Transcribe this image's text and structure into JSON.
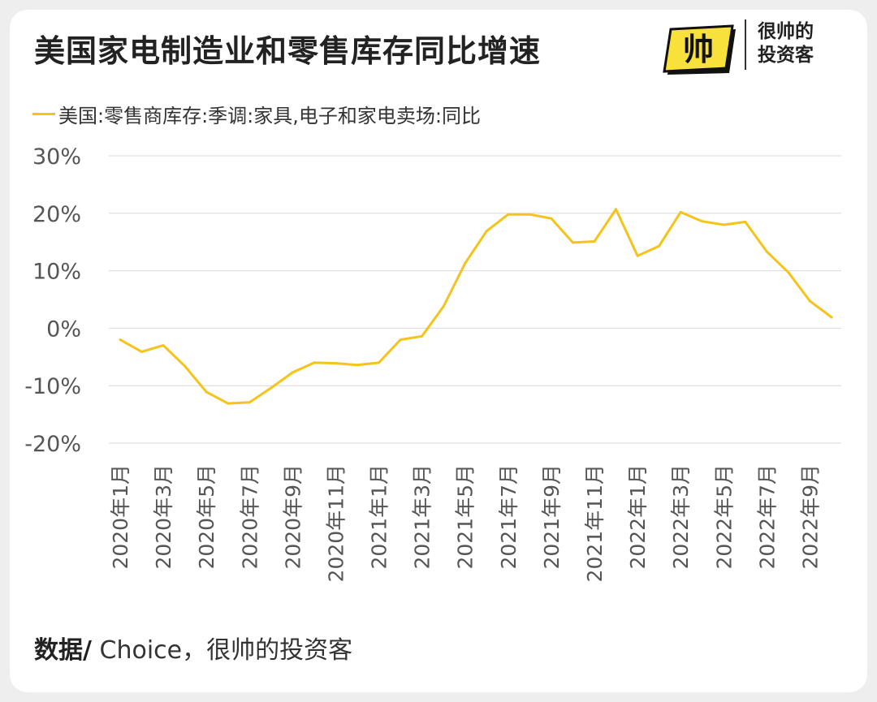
{
  "title": "美国家电制造业和零售库存同比增速",
  "brand": {
    "line1": "很帅的",
    "line2": "投资客",
    "logo_text": "帅"
  },
  "footer": {
    "label": "数据/",
    "text": " Choice，很帅的投资客"
  },
  "colors": {
    "line": "#f5c31a",
    "grid": "#d9d9d9",
    "axis_text": "#555555",
    "logo_yellow": "#f7e13a"
  },
  "chart_data": {
    "type": "line",
    "legend_position": "top-left",
    "grid": true,
    "ylim": [
      -20,
      30
    ],
    "yticks": [
      -20,
      -10,
      0,
      10,
      20,
      30
    ],
    "ytick_labels": [
      "-20%",
      "-10%",
      "0%",
      "10%",
      "20%",
      "30%"
    ],
    "x": [
      "2020年1月",
      "2020年2月",
      "2020年3月",
      "2020年4月",
      "2020年5月",
      "2020年6月",
      "2020年7月",
      "2020年8月",
      "2020年9月",
      "2020年10月",
      "2020年11月",
      "2020年12月",
      "2021年1月",
      "2021年2月",
      "2021年3月",
      "2021年4月",
      "2021年5月",
      "2021年6月",
      "2021年7月",
      "2021年8月",
      "2021年9月",
      "2021年10月",
      "2021年11月",
      "2021年12月",
      "2022年1月",
      "2022年2月",
      "2022年3月",
      "2022年4月",
      "2022年5月",
      "2022年6月",
      "2022年7月",
      "2022年8月",
      "2022年9月",
      "2022年10月"
    ],
    "x_tick_labels": [
      "2020年1月",
      "2020年3月",
      "2020年5月",
      "2020年7月",
      "2020年9月",
      "2020年11月",
      "2021年1月",
      "2021年3月",
      "2021年5月",
      "2021年7月",
      "2021年9月",
      "2021年11月",
      "2022年1月",
      "2022年3月",
      "2022年5月",
      "2022年7月",
      "2022年9月"
    ],
    "series": [
      {
        "name": "美国:零售商库存:季调:家具,电子和家电卖场:同比",
        "values": [
          -2.0,
          -4.1,
          -3.0,
          -6.6,
          -11.1,
          -13.1,
          -12.9,
          -10.4,
          -7.7,
          -6.0,
          -6.1,
          -6.4,
          -6.0,
          -2.0,
          -1.4,
          3.8,
          11.3,
          16.9,
          19.8,
          19.8,
          19.1,
          14.9,
          15.1,
          20.7,
          12.6,
          14.3,
          20.2,
          18.6,
          18.0,
          18.5,
          13.3,
          9.7,
          4.7,
          1.9
        ]
      }
    ]
  }
}
